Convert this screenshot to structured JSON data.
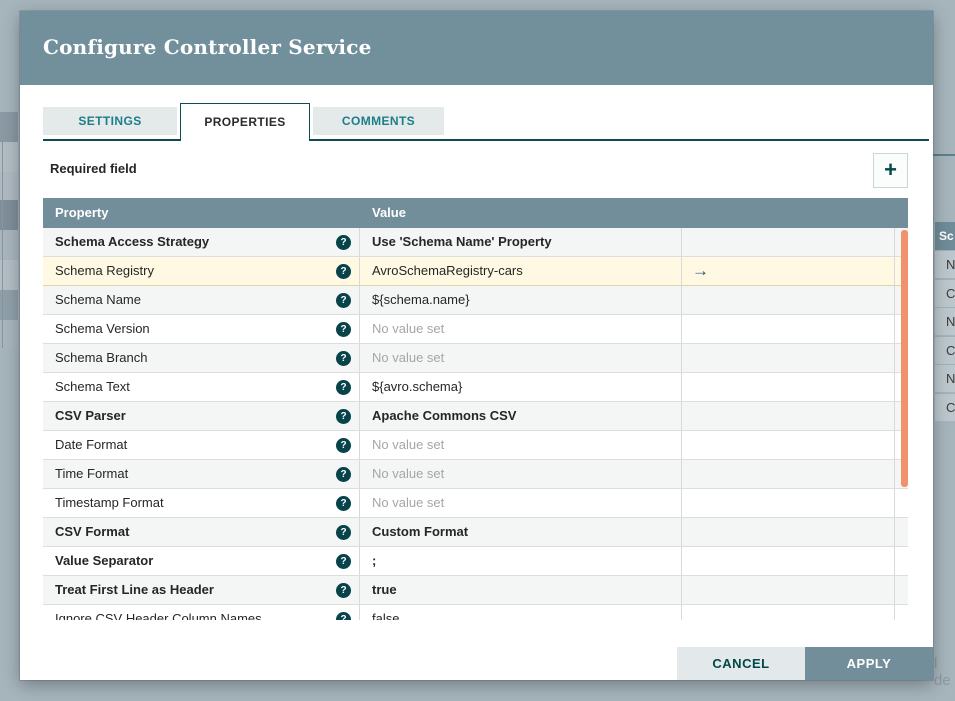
{
  "overlay_background": {
    "partial_table_header": "Sc",
    "partial_row_letters": [
      "N",
      "C",
      "N",
      "C",
      "N",
      "C"
    ],
    "partial_cut_text": "l de"
  },
  "dialog": {
    "title": "Configure Controller Service",
    "tabs": {
      "settings": "SETTINGS",
      "properties": "PROPERTIES",
      "comments": "COMMENTS",
      "active": "PROPERTIES"
    },
    "required_field_label": "Required field",
    "add_property_icon": "+",
    "table": {
      "columns": {
        "property": "Property",
        "value": "Value"
      },
      "help_icon_glyph": "?",
      "goto_icon_glyph": "→",
      "rows": [
        {
          "name": "Schema Access Strategy",
          "value": "Use 'Schema Name' Property",
          "bold": true,
          "unset": false,
          "highlighted": false,
          "arrow": false
        },
        {
          "name": "Schema Registry",
          "value": "AvroSchemaRegistry-cars",
          "bold": false,
          "unset": false,
          "highlighted": true,
          "arrow": true
        },
        {
          "name": "Schema Name",
          "value": "${schema.name}",
          "bold": false,
          "unset": false,
          "highlighted": false,
          "arrow": false
        },
        {
          "name": "Schema Version",
          "value": "No value set",
          "bold": false,
          "unset": true,
          "highlighted": false,
          "arrow": false
        },
        {
          "name": "Schema Branch",
          "value": "No value set",
          "bold": false,
          "unset": true,
          "highlighted": false,
          "arrow": false
        },
        {
          "name": "Schema Text",
          "value": "${avro.schema}",
          "bold": false,
          "unset": false,
          "highlighted": false,
          "arrow": false
        },
        {
          "name": "CSV Parser",
          "value": "Apache Commons CSV",
          "bold": true,
          "unset": false,
          "highlighted": false,
          "arrow": false
        },
        {
          "name": "Date Format",
          "value": "No value set",
          "bold": false,
          "unset": true,
          "highlighted": false,
          "arrow": false
        },
        {
          "name": "Time Format",
          "value": "No value set",
          "bold": false,
          "unset": true,
          "highlighted": false,
          "arrow": false
        },
        {
          "name": "Timestamp Format",
          "value": "No value set",
          "bold": false,
          "unset": true,
          "highlighted": false,
          "arrow": false
        },
        {
          "name": "CSV Format",
          "value": "Custom Format",
          "bold": true,
          "unset": false,
          "highlighted": false,
          "arrow": false
        },
        {
          "name": "Value Separator",
          "value": ";",
          "bold": true,
          "unset": false,
          "highlighted": false,
          "arrow": false
        },
        {
          "name": "Treat First Line as Header",
          "value": "true",
          "bold": true,
          "unset": false,
          "highlighted": false,
          "arrow": false
        },
        {
          "name": "Ignore CSV Header Column Names",
          "value": "false",
          "bold": false,
          "unset": false,
          "highlighted": false,
          "arrow": false
        }
      ]
    },
    "buttons": {
      "cancel": "CANCEL",
      "apply": "APPLY"
    },
    "colors": {
      "header_bar": "#71909c",
      "table_header": "#728e9b",
      "tab_teal_text": "#1b7e8a",
      "tab_border": "#0e4d57",
      "highlight_row": "#fff8e3",
      "scrollbar_thumb": "#f0926e",
      "help_icon": "#07434a",
      "apply_button": "#728e9b",
      "cancel_button": "#e3e8eb",
      "overlay": "#a6b4bc"
    }
  }
}
